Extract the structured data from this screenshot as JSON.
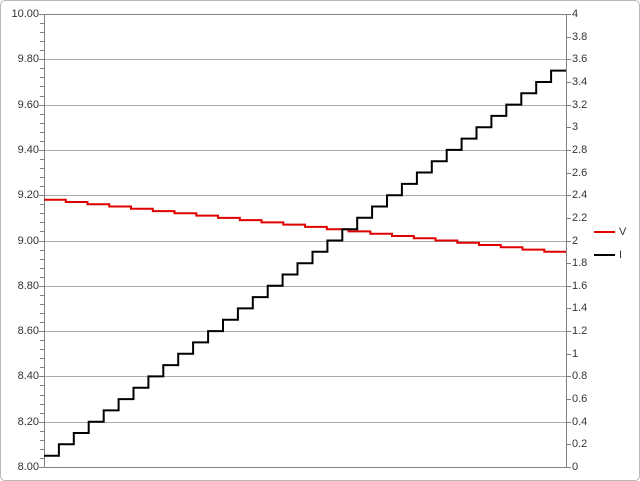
{
  "chart_data": {
    "type": "line",
    "title": "",
    "description": "Dual-axis step chart: voltage V (left axis) sags as current I (right axis) is stepped up",
    "grid": {
      "horizontal": true,
      "vertical": false
    },
    "x_axis": {
      "labels_visible": false
    },
    "left_axis": {
      "min": 8.0,
      "max": 10.0,
      "major_step": 0.2,
      "minor_step": 0.04,
      "tick_labels": [
        "10.00",
        "9.80",
        "9.60",
        "9.40",
        "9.20",
        "9.00",
        "8.80",
        "8.60",
        "8.40",
        "8.20",
        "8.00"
      ]
    },
    "right_axis": {
      "min": 0.0,
      "max": 4.0,
      "label_step": 0.2,
      "tick_labels": [
        "4",
        "3.8",
        "3.6",
        "3.4",
        "3.2",
        "3",
        "2.8",
        "2.6",
        "2.4",
        "2.2",
        "2",
        "1.8",
        "1.6",
        "1.4",
        "1.2",
        "1",
        "0.8",
        "0.6",
        "0.4",
        "0.2",
        "0"
      ]
    },
    "legend": {
      "position": "middle-right",
      "entries": [
        "V",
        "I"
      ]
    },
    "series": [
      {
        "name": "V",
        "axis": "left",
        "color": "#e00000",
        "style": "step",
        "values": [
          9.18,
          9.17,
          9.16,
          9.15,
          9.14,
          9.13,
          9.12,
          9.11,
          9.1,
          9.09,
          9.08,
          9.07,
          9.06,
          9.05,
          9.04,
          9.03,
          9.02,
          9.01,
          9.0,
          8.99,
          8.98,
          8.97,
          8.96,
          8.95
        ]
      },
      {
        "name": "I",
        "axis": "right",
        "color": "#000000",
        "style": "step",
        "values": [
          0.1,
          0.2,
          0.3,
          0.4,
          0.5,
          0.6,
          0.7,
          0.8,
          0.9,
          1.0,
          1.1,
          1.2,
          1.3,
          1.4,
          1.5,
          1.6,
          1.7,
          1.8,
          1.9,
          2.0,
          2.1,
          2.2,
          2.3,
          2.4,
          2.5,
          2.6,
          2.7,
          2.8,
          2.9,
          3.0,
          3.1,
          3.2,
          3.3,
          3.4,
          3.5
        ]
      }
    ]
  },
  "colors": {
    "background": "#ffffff",
    "canvas_border": "#b9b9b9",
    "plot_border": "#808080",
    "gridline": "#acacac",
    "tick": "#808080",
    "text": "#333333",
    "series_v": "#e00000",
    "series_i": "#000000"
  }
}
